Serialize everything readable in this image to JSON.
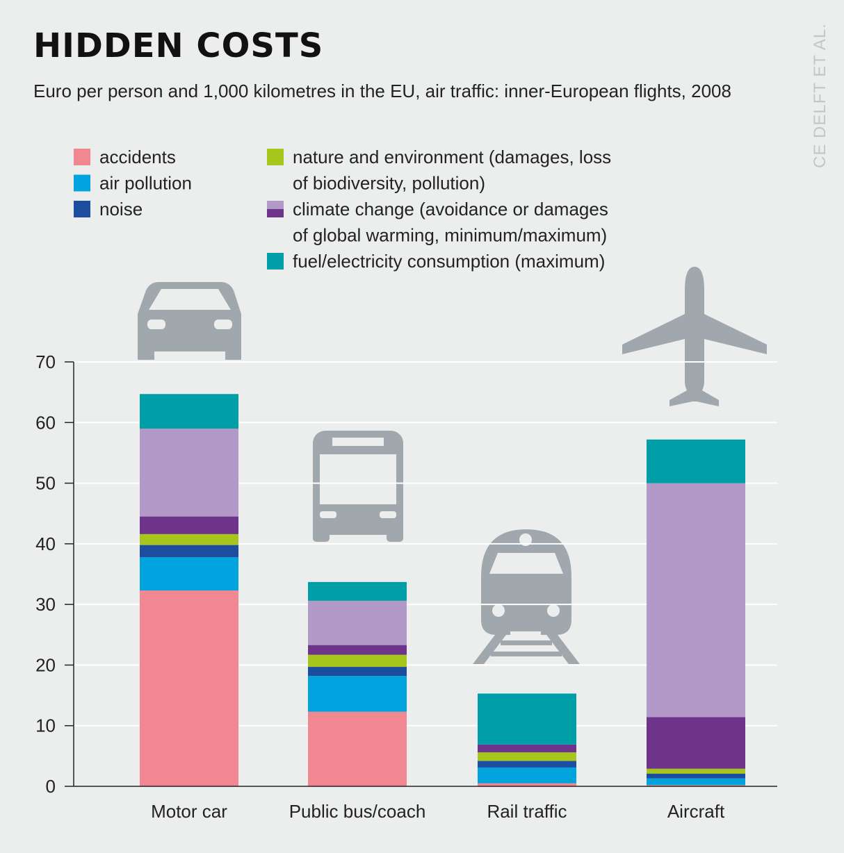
{
  "header": {
    "title": "HIDDEN COSTS",
    "subtitle": "Euro per person and 1,000 kilometres in the EU, air traffic: inner-European flights, 2008",
    "source": "CE DELFT ET AL."
  },
  "legend": [
    {
      "label_lines": [
        "accidents"
      ],
      "colors": [
        "#f08791"
      ]
    },
    {
      "label_lines": [
        "air pollution"
      ],
      "colors": [
        "#00a3dd"
      ]
    },
    {
      "label_lines": [
        "noise"
      ],
      "colors": [
        "#1d4d9f"
      ]
    },
    {
      "label_lines": [
        "nature and environment (damages, loss",
        "of biodiversity, pollution)"
      ],
      "colors": [
        "#a7c61c"
      ]
    },
    {
      "label_lines": [
        "climate change (avoidance or damages",
        "of global warming, minimum/maximum)"
      ],
      "colors": [
        "#b399c8",
        "#6e348b"
      ]
    },
    {
      "label_lines": [
        "fuel/electricity consumption (maximum)"
      ],
      "colors": [
        "#009ea6"
      ]
    }
  ],
  "icons": [
    "car-icon",
    "bus-icon",
    "train-icon",
    "airplane-icon"
  ],
  "chart_data": {
    "type": "bar",
    "stacked": true,
    "categories": [
      "Motor car",
      "Public bus/coach",
      "Rail traffic",
      "Aircraft"
    ],
    "ylim": [
      0,
      70
    ],
    "yticks": [
      "0",
      "10",
      "20",
      "30",
      "40",
      "50",
      "60",
      "70"
    ],
    "grid": true,
    "series": [
      {
        "name": "accidents",
        "color": "#f08791",
        "values": [
          32.3,
          12.3,
          0.5,
          0.2
        ]
      },
      {
        "name": "air pollution",
        "color": "#00a3dd",
        "values": [
          5.5,
          5.9,
          2.6,
          1.1
        ]
      },
      {
        "name": "noise",
        "color": "#1d4d9f",
        "values": [
          2.0,
          1.5,
          1.1,
          0.8
        ]
      },
      {
        "name": "nature and environment (damages, loss of biodiversity, pollution)",
        "color": "#a7c61c",
        "values": [
          1.8,
          2.0,
          1.4,
          0.8
        ]
      },
      {
        "name": "climate change (minimum)",
        "color": "#6e348b",
        "values": [
          2.9,
          1.6,
          1.3,
          8.5
        ]
      },
      {
        "name": "climate change (maximum)",
        "color": "#b399c8",
        "values": [
          14.5,
          7.3,
          0,
          38.6
        ]
      },
      {
        "name": "fuel/electricity consumption (maximum)",
        "color": "#009ea6",
        "values": [
          5.7,
          3.1,
          8.4,
          7.2
        ]
      }
    ]
  }
}
